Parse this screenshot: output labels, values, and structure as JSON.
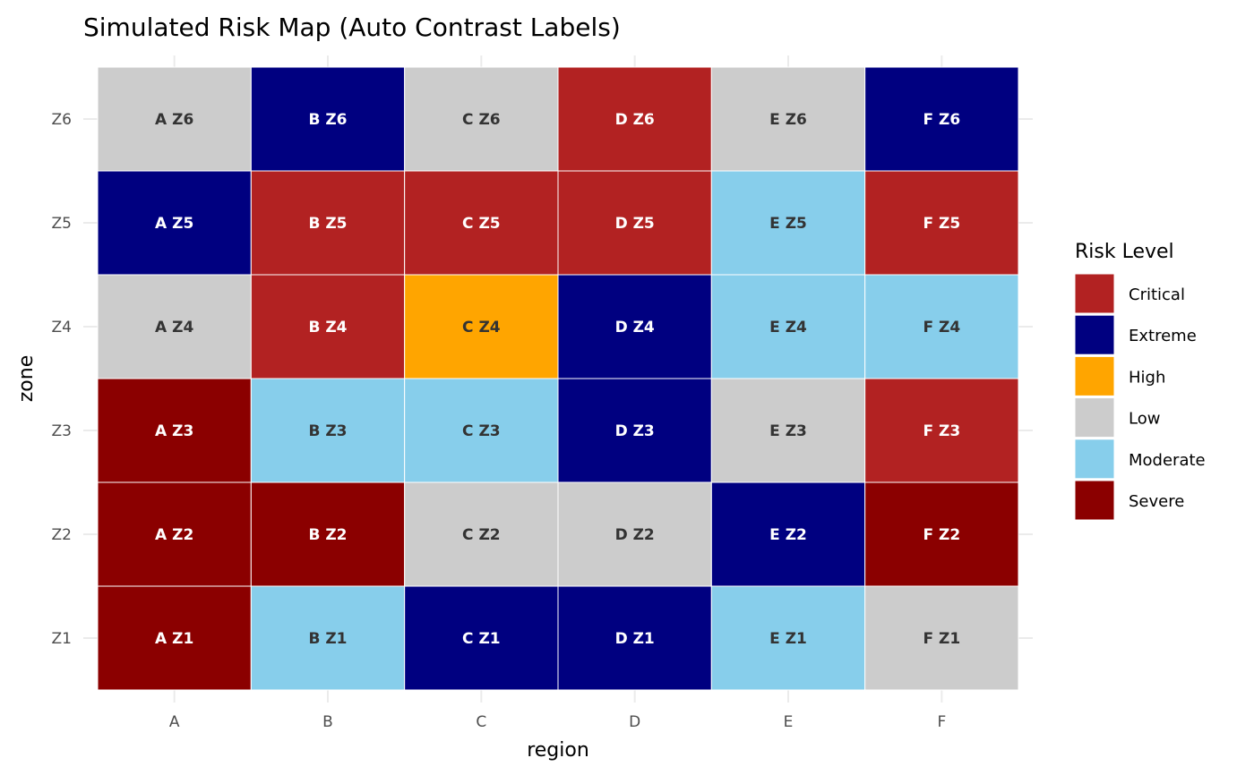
{
  "chart_data": {
    "type": "heatmap",
    "title": "Simulated Risk Map (Auto Contrast Labels)",
    "xlabel": "region",
    "ylabel": "zone",
    "x_categories": [
      "A",
      "B",
      "C",
      "D",
      "E",
      "F"
    ],
    "y_categories": [
      "Z1",
      "Z2",
      "Z3",
      "Z4",
      "Z5",
      "Z6"
    ],
    "grid": true,
    "legend": {
      "title": "Risk Level",
      "position": "right",
      "entries": [
        {
          "label": "Critical",
          "color": "#B22222"
        },
        {
          "label": "Extreme",
          "color": "#000080"
        },
        {
          "label": "High",
          "color": "#FFA500"
        },
        {
          "label": "Low",
          "color": "#CCCCCC"
        },
        {
          "label": "Moderate",
          "color": "#87CEEB"
        },
        {
          "label": "Severe",
          "color": "#8B0000"
        }
      ]
    },
    "label_colors": {
      "dark_bg": "#FFFFFF",
      "light_bg": "#333333"
    },
    "cells": {
      "Z6": [
        "Low",
        "Extreme",
        "Low",
        "Critical",
        "Low",
        "Extreme"
      ],
      "Z5": [
        "Extreme",
        "Critical",
        "Critical",
        "Critical",
        "Moderate",
        "Critical"
      ],
      "Z4": [
        "Low",
        "Critical",
        "High",
        "Extreme",
        "Moderate",
        "Moderate"
      ],
      "Z3": [
        "Severe",
        "Moderate",
        "Moderate",
        "Extreme",
        "Low",
        "Critical"
      ],
      "Z2": [
        "Severe",
        "Severe",
        "Low",
        "Low",
        "Extreme",
        "Severe"
      ],
      "Z1": [
        "Severe",
        "Moderate",
        "Extreme",
        "Extreme",
        "Moderate",
        "Low"
      ]
    }
  }
}
